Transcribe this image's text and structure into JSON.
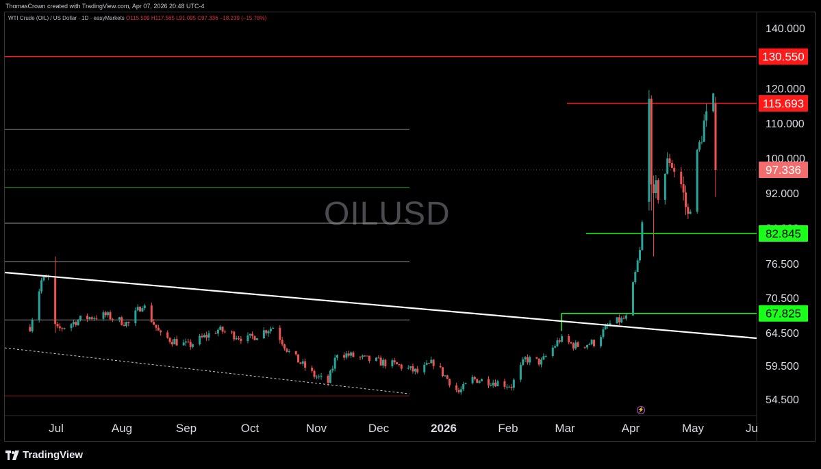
{
  "header": {
    "credit": "ThomasCrown created with TradingView.com, Apr 07, 2026 20:48 UTC-4",
    "symbol": "WTI Crude (OIL) / US Dollar · 1D · easyMarkets",
    "ohlc": "O115.599  H117.565  L91.095  C97.336  −18.239 (−15.78%)"
  },
  "watermark": "OILUSD",
  "brand": "TradingView",
  "colors": {
    "up": "#26a69a",
    "down": "#ef5350",
    "resistance": "#ff1a1a",
    "support": "#19ff19",
    "trendline": "#ffffff",
    "price_tag": "#f26d6d"
  },
  "chart_data": {
    "type": "candlestick",
    "title": "",
    "y_ticks": [
      "140.000",
      "120.000",
      "110.000",
      "100.000",
      "92.000",
      "84.000",
      "76.500",
      "70.500",
      "64.500",
      "59.500",
      "54.500"
    ],
    "x_ticks": [
      {
        "label": "Jul",
        "bold": false
      },
      {
        "label": "Aug",
        "bold": false
      },
      {
        "label": "Sep",
        "bold": false
      },
      {
        "label": "Oct",
        "bold": false
      },
      {
        "label": "Nov",
        "bold": false
      },
      {
        "label": "Dec",
        "bold": false
      },
      {
        "label": "2026",
        "bold": true
      },
      {
        "label": "Feb",
        "bold": false
      },
      {
        "label": "Mar",
        "bold": false
      },
      {
        "label": "Apr",
        "bold": false
      },
      {
        "label": "May",
        "bold": false
      },
      {
        "label": "Ju",
        "bold": false
      }
    ],
    "price_labels": [
      {
        "value": "130.550",
        "kind": "resistance"
      },
      {
        "value": "115.693",
        "kind": "resistance"
      },
      {
        "value": "97.336",
        "kind": "last"
      },
      {
        "value": "82.845",
        "kind": "support"
      },
      {
        "value": "67.825",
        "kind": "support"
      }
    ],
    "horizontal_levels": [
      108.2,
      93.3,
      85.1,
      76.9,
      66.7
    ],
    "low_level": 55.0,
    "last_close": 97.336,
    "ohlc_last": {
      "open": 115.599,
      "high": 117.565,
      "low": 91.095,
      "close": 97.336,
      "change": -18.239,
      "change_pct": -15.78
    },
    "candle_anchors": [
      {
        "date": "2025-06-12",
        "close": 65.5
      },
      {
        "date": "2025-06-17",
        "close": 73.5
      },
      {
        "date": "2025-06-20",
        "close": 74.0
      },
      {
        "date": "2025-06-24",
        "close": 65.0
      },
      {
        "date": "2025-07-05",
        "close": 67.0
      },
      {
        "date": "2025-07-15",
        "close": 67.5
      },
      {
        "date": "2025-07-25",
        "close": 66.0
      },
      {
        "date": "2025-07-31",
        "close": 69.5
      },
      {
        "date": "2025-08-08",
        "close": 64.0
      },
      {
        "date": "2025-08-20",
        "close": 62.5
      },
      {
        "date": "2025-09-02",
        "close": 65.0
      },
      {
        "date": "2025-09-15",
        "close": 63.5
      },
      {
        "date": "2025-09-26",
        "close": 65.5
      },
      {
        "date": "2025-10-03",
        "close": 61.5
      },
      {
        "date": "2025-10-14",
        "close": 58.0
      },
      {
        "date": "2025-10-20",
        "close": 57.0
      },
      {
        "date": "2025-10-24",
        "close": 61.5
      },
      {
        "date": "2025-11-05",
        "close": 60.5
      },
      {
        "date": "2025-11-20",
        "close": 59.5
      },
      {
        "date": "2025-11-28",
        "close": 58.5
      },
      {
        "date": "2025-12-05",
        "close": 60.0
      },
      {
        "date": "2025-12-16",
        "close": 55.5
      },
      {
        "date": "2025-12-22",
        "close": 57.5
      },
      {
        "date": "2026-01-02",
        "close": 57.0
      },
      {
        "date": "2026-01-08",
        "close": 56.5
      },
      {
        "date": "2026-01-14",
        "close": 60.5
      },
      {
        "date": "2026-01-21",
        "close": 60.0
      },
      {
        "date": "2026-01-29",
        "close": 63.5
      },
      {
        "date": "2026-02-05",
        "close": 62.5
      },
      {
        "date": "2026-02-13",
        "close": 63.0
      },
      {
        "date": "2026-02-20",
        "close": 66.0
      },
      {
        "date": "2026-02-27",
        "close": 67.0
      },
      {
        "date": "2026-03-02",
        "close": 72.5
      },
      {
        "date": "2026-03-05",
        "close": 79.0
      },
      {
        "date": "2026-03-06",
        "close": 85.0
      },
      {
        "date": "2026-03-09",
        "close": 117.0
      },
      {
        "date": "2026-03-10",
        "close": 94.0
      },
      {
        "date": "2026-03-13",
        "close": 92.0
      },
      {
        "date": "2026-03-18",
        "close": 100.0
      },
      {
        "date": "2026-03-23",
        "close": 94.0
      },
      {
        "date": "2026-03-26",
        "close": 86.5
      },
      {
        "date": "2026-03-30",
        "close": 100.5
      },
      {
        "date": "2026-04-02",
        "close": 110.0
      },
      {
        "date": "2026-04-06",
        "close": 115.599
      },
      {
        "date": "2026-04-07",
        "close": 97.336
      }
    ]
  }
}
